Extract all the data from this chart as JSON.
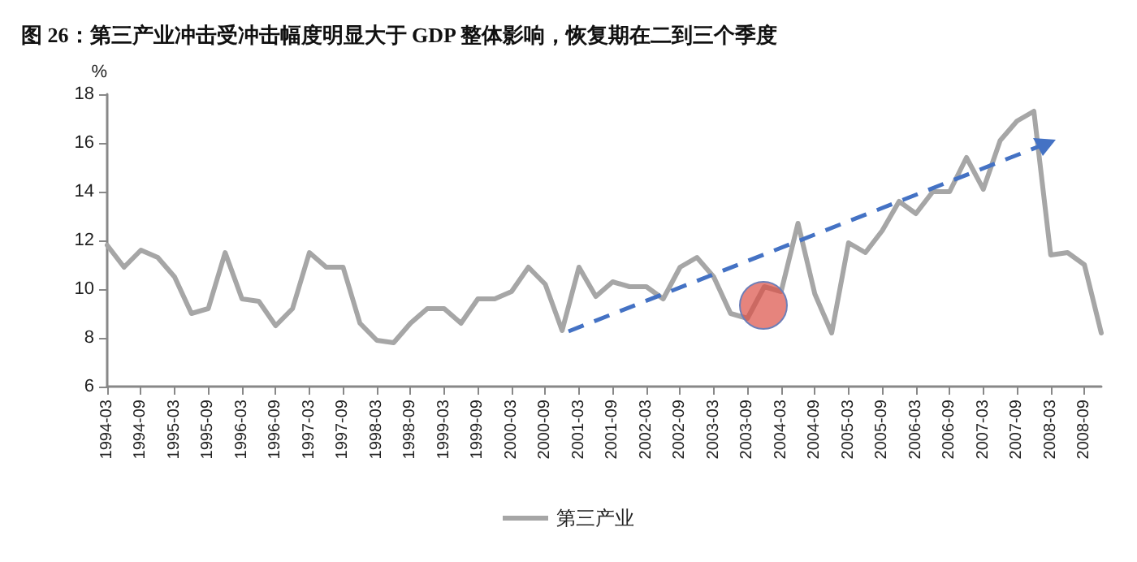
{
  "chart_data": {
    "type": "line",
    "title": "图 26：第三产业冲击受冲击幅度明显大于 GDP 整体影响，恢复期在二到三个季度",
    "ylabel": "%",
    "categories": [
      "1994-03",
      null,
      "1994-09",
      null,
      "1995-03",
      null,
      "1995-09",
      null,
      "1996-03",
      null,
      "1996-09",
      null,
      "1997-03",
      null,
      "1997-09",
      null,
      "1998-03",
      null,
      "1998-09",
      null,
      "1999-03",
      null,
      "1999-09",
      null,
      "2000-03",
      null,
      "2000-09",
      null,
      "2001-03",
      null,
      "2001-09",
      null,
      "2002-03",
      null,
      "2002-09",
      null,
      "2003-03",
      null,
      "2003-09",
      null,
      "2004-03",
      null,
      "2004-09",
      null,
      "2005-03",
      null,
      "2005-09",
      null,
      "2006-03",
      null,
      "2006-09",
      null,
      "2007-03",
      null,
      "2007-09",
      null,
      "2008-03",
      null,
      "2008-09",
      null
    ],
    "series": [
      {
        "name": "第三产业",
        "color": "#a6a6a6",
        "values": [
          11.8,
          10.9,
          11.6,
          11.3,
          10.5,
          9.0,
          9.2,
          11.5,
          9.6,
          9.5,
          8.5,
          9.2,
          11.5,
          10.9,
          10.9,
          8.6,
          7.9,
          7.8,
          8.6,
          9.2,
          9.2,
          8.6,
          9.6,
          9.6,
          9.9,
          10.9,
          10.2,
          8.3,
          10.9,
          9.7,
          10.3,
          10.1,
          10.1,
          9.6,
          10.9,
          11.3,
          10.5,
          9.0,
          8.8,
          10.1,
          9.9,
          12.7,
          9.8,
          8.2,
          11.9,
          11.5,
          12.4,
          13.6,
          13.1,
          14.0,
          14.0,
          15.4,
          14.1,
          16.1,
          16.9,
          17.3,
          11.4,
          11.5,
          11.0,
          8.2
        ]
      }
    ],
    "ylim": [
      6,
      18
    ],
    "yticks": [
      6,
      8,
      10,
      12,
      14,
      16,
      18
    ],
    "grid": false,
    "legend": "bottom",
    "marker": "none"
  }
}
